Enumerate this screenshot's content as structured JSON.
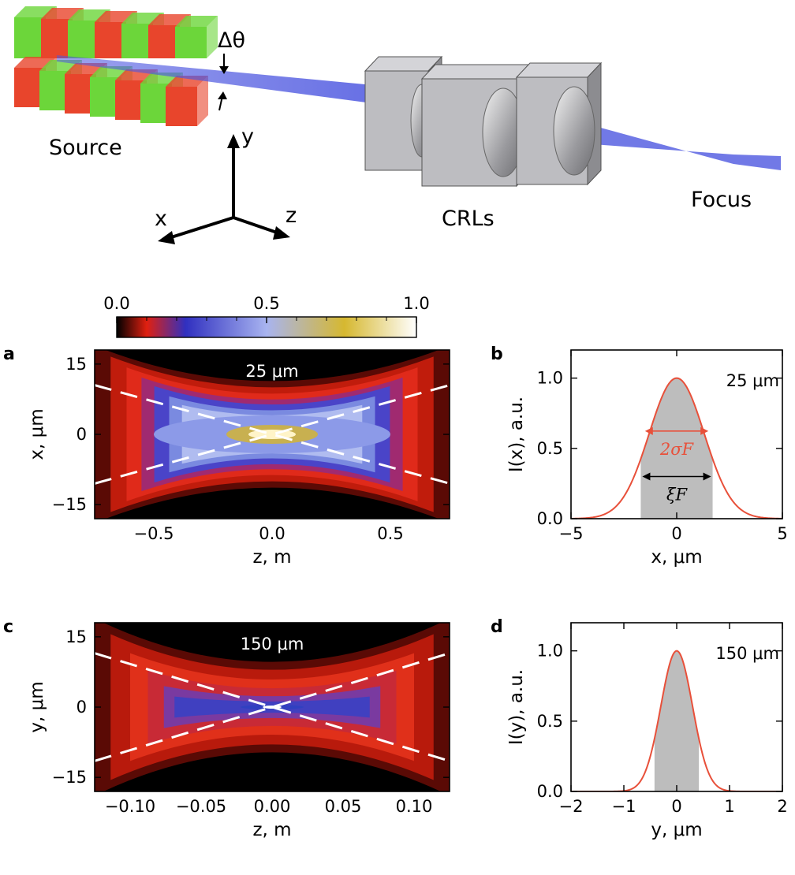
{
  "schematic": {
    "source_label": "Source",
    "crl_label": "CRLs",
    "focus_label": "Focus",
    "divergence_label": "Δθ",
    "axis_labels": {
      "x": "x",
      "y": "y",
      "z": "z"
    },
    "colors": {
      "beam": "#4d57e0",
      "magnet_red": "#e8452c",
      "magnet_green": "#6cd63a",
      "lens": "#b8b8bc"
    }
  },
  "colorbar": {
    "ticks": [
      {
        "value": 0.0,
        "label": "0.0"
      },
      {
        "value": 0.5,
        "label": "0.5"
      },
      {
        "value": 1.0,
        "label": "1.0"
      }
    ],
    "stops": [
      "#000000",
      "#e02010",
      "#3030c0",
      "#a8b4f0",
      "#d6b830",
      "#ffffff"
    ]
  },
  "chart_data": [
    {
      "panel": "a",
      "type": "heatmap",
      "annotation": "25 μm",
      "xlabel": "z, m",
      "ylabel": "x, μm",
      "xlim": [
        -0.75,
        0.75
      ],
      "ylim": [
        -18,
        18
      ],
      "xticks": [
        {
          "value": -0.5,
          "label": "−0.5"
        },
        {
          "value": 0.0,
          "label": "0.0"
        },
        {
          "value": 0.5,
          "label": "0.5"
        }
      ],
      "yticks": [
        {
          "value": 15,
          "label": "15"
        },
        {
          "value": 0,
          "label": "0"
        },
        {
          "value": -15,
          "label": "−15"
        }
      ],
      "waist_um": 3.5,
      "dashed_lines": [
        {
          "z": [
            -0.75,
            0.75
          ],
          "x": [
            10.5,
            -10.5
          ]
        },
        {
          "z": [
            -0.75,
            0.75
          ],
          "x": [
            -10.5,
            10.5
          ]
        }
      ]
    },
    {
      "panel": "b",
      "type": "line",
      "annotation": "25 μm",
      "xlabel": "x, μm",
      "ylabel": "I(x), a.u.",
      "xlim": [
        -5,
        5
      ],
      "ylim": [
        0,
        1.2
      ],
      "xticks": [
        {
          "value": -5,
          "label": "−5"
        },
        {
          "value": 0,
          "label": "0"
        },
        {
          "value": 5,
          "label": "5"
        }
      ],
      "yticks": [
        {
          "value": 0.0,
          "label": "0.0"
        },
        {
          "value": 0.5,
          "label": "0.5"
        },
        {
          "value": 1.0,
          "label": "1.0"
        }
      ],
      "series": [
        {
          "peak": 1.0,
          "sigma": 1.3
        }
      ],
      "shaded_range": [
        -1.7,
        1.7
      ],
      "sigma_label": "2σF",
      "xi_label": "ξF",
      "colors": {
        "curve": "#e8503a",
        "shade": "#bdbdbd"
      }
    },
    {
      "panel": "c",
      "type": "heatmap",
      "annotation": "150 μm",
      "xlabel": "z, m",
      "ylabel": "y, μm",
      "xlim": [
        -0.125,
        0.125
      ],
      "ylim": [
        -18,
        18
      ],
      "xticks": [
        {
          "value": -0.1,
          "label": "−0.10"
        },
        {
          "value": -0.05,
          "label": "−0.05"
        },
        {
          "value": 0.0,
          "label": "0.00"
        },
        {
          "value": 0.05,
          "label": "0.05"
        },
        {
          "value": 0.1,
          "label": "0.10"
        }
      ],
      "yticks": [
        {
          "value": 15,
          "label": "15"
        },
        {
          "value": 0,
          "label": "0"
        },
        {
          "value": -15,
          "label": "−15"
        }
      ],
      "waist_um": 0.4,
      "dashed_lines": [
        {
          "z": [
            -0.125,
            0.125
          ],
          "y": [
            11.5,
            -11.5
          ]
        },
        {
          "z": [
            -0.125,
            0.125
          ],
          "y": [
            -11.5,
            11.5
          ]
        }
      ]
    },
    {
      "panel": "d",
      "type": "line",
      "annotation": "150 μm",
      "xlabel": "y, μm",
      "ylabel": "I(y), a.u.",
      "xlim": [
        -2,
        2
      ],
      "ylim": [
        0,
        1.2
      ],
      "xticks": [
        {
          "value": -2,
          "label": "−2"
        },
        {
          "value": -1,
          "label": "−1"
        },
        {
          "value": 0,
          "label": "0"
        },
        {
          "value": 1,
          "label": "1"
        },
        {
          "value": 2,
          "label": "2"
        }
      ],
      "yticks": [
        {
          "value": 0.0,
          "label": "0.0"
        },
        {
          "value": 0.5,
          "label": "0.5"
        },
        {
          "value": 1.0,
          "label": "1.0"
        }
      ],
      "series": [
        {
          "peak": 1.0,
          "sigma": 0.3
        }
      ],
      "shaded_range": [
        -0.42,
        0.42
      ],
      "colors": {
        "curve": "#e8503a",
        "shade": "#bdbdbd"
      }
    }
  ]
}
